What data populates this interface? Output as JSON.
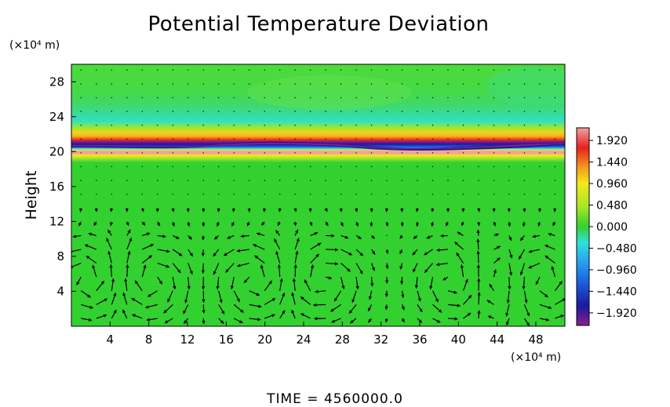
{
  "chart_data": {
    "type": "heatmap",
    "title": "Potential Temperature Deviation",
    "ylabel": "Height",
    "y_unit_label": "(×10⁴ m)",
    "x_unit_label": "(×10⁴ m)",
    "x_ticks": [
      "4",
      "8",
      "12",
      "16",
      "20",
      "24",
      "28",
      "32",
      "36",
      "40",
      "44",
      "48"
    ],
    "y_ticks": [
      "4",
      "8",
      "12",
      "16",
      "20",
      "24",
      "28"
    ],
    "xlim": [
      0,
      51
    ],
    "ylim": [
      0,
      30
    ],
    "grid": false,
    "colorbar": {
      "placement": "right",
      "ticks": [
        "1.920",
        "1.440",
        "0.960",
        "0.480",
        "0.000",
        "−0.480",
        "−0.960",
        "−1.440",
        "−1.920"
      ],
      "values": [
        1.92,
        1.44,
        0.96,
        0.48,
        0.0,
        -0.48,
        -0.96,
        -1.44,
        -1.92
      ],
      "range": [
        -2.2,
        2.2
      ]
    },
    "field_description": {
      "background_value": 0.0,
      "bands": [
        {
          "height": 22.4,
          "value": 0.85
        },
        {
          "height": 21.0,
          "value": -2.1
        },
        {
          "height": 20.2,
          "value": 2.1
        },
        {
          "height": 19.6,
          "value": 0.6
        }
      ]
    },
    "vortex_centers_x": [
      2,
      8,
      19,
      26,
      40,
      44,
      48
    ],
    "footer": "TIME  =  4560000.0"
  },
  "colors": {
    "background": "#ffffff",
    "field_neutral": "#33d12f",
    "colorscale": [
      "#8a1f8a",
      "#1a1aa0",
      "#1e5fe0",
      "#29a8f0",
      "#2fe0d8",
      "#33d12f",
      "#a8e628",
      "#f2e81d",
      "#f29a1d",
      "#e82020",
      "#f2a0a0"
    ]
  }
}
